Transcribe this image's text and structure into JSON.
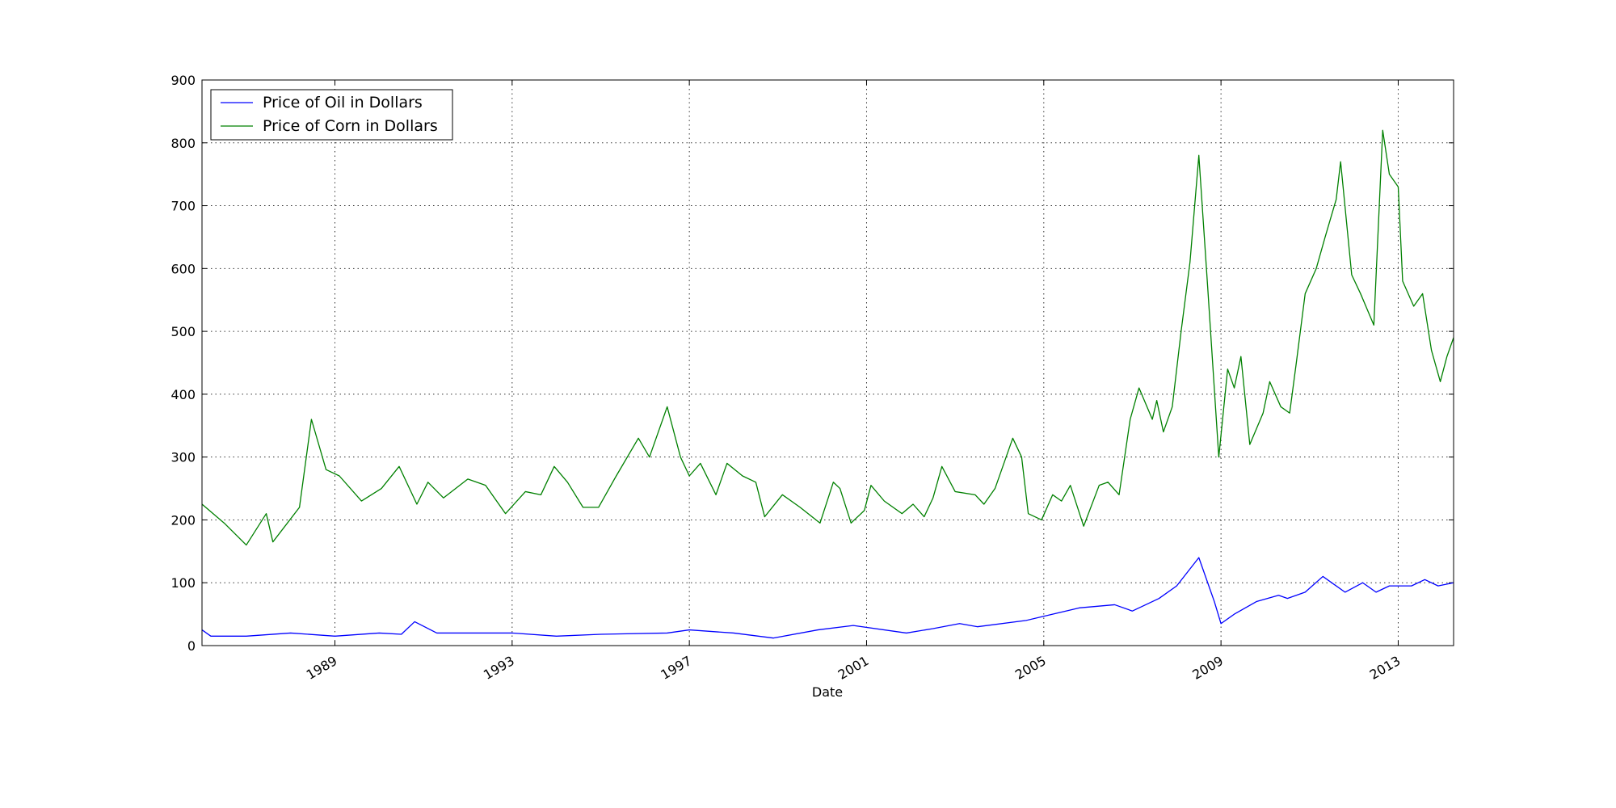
{
  "chart_data": {
    "type": "line",
    "x_label": "Date",
    "xlim": [
      1986.0,
      2014.25
    ],
    "xticks": [
      1989,
      1993,
      1997,
      2001,
      2005,
      2009,
      2013
    ],
    "ylim": [
      0,
      900
    ],
    "yticks": [
      0,
      100,
      200,
      300,
      400,
      500,
      600,
      700,
      800,
      900
    ],
    "grid": true,
    "legend": "upper-left",
    "series": [
      {
        "name": "Price of Oil in Dollars",
        "color": "#0000ff",
        "x": [
          1986.0,
          1986.2,
          1987.0,
          1988.0,
          1989.0,
          1990.0,
          1990.5,
          1990.8,
          1991.3,
          1993.0,
          1994.0,
          1995.0,
          1996.5,
          1997.0,
          1998.0,
          1998.9,
          1999.9,
          2000.7,
          2001.9,
          2002.5,
          2003.1,
          2003.5,
          2004.6,
          2005.2,
          2005.8,
          2006.6,
          2007.0,
          2007.6,
          2008.0,
          2008.5,
          2008.85,
          2009.0,
          2009.3,
          2009.8,
          2010.3,
          2010.5,
          2010.9,
          2011.3,
          2011.8,
          2012.2,
          2012.5,
          2012.8,
          2013.3,
          2013.6,
          2013.9,
          2014.25
        ],
        "values": [
          25,
          15,
          15,
          20,
          15,
          20,
          18,
          38,
          20,
          20,
          15,
          18,
          20,
          25,
          20,
          12,
          25,
          32,
          20,
          27,
          35,
          30,
          40,
          50,
          60,
          65,
          55,
          75,
          95,
          140,
          70,
          35,
          50,
          70,
          80,
          75,
          85,
          110,
          85,
          100,
          85,
          95,
          95,
          105,
          95,
          100
        ]
      },
      {
        "name": "Price of Corn in Dollars",
        "color": "#008000",
        "x": [
          1986.0,
          1986.5,
          1987.0,
          1987.45,
          1987.6,
          1988.2,
          1988.47,
          1988.8,
          1989.1,
          1989.6,
          1990.05,
          1990.45,
          1990.85,
          1991.1,
          1991.45,
          1992.0,
          1992.4,
          1992.85,
          1993.3,
          1993.65,
          1993.95,
          1994.25,
          1994.6,
          1994.95,
          1995.35,
          1995.85,
          1996.1,
          1996.5,
          1996.8,
          1997.0,
          1997.25,
          1997.6,
          1997.85,
          1998.2,
          1998.5,
          1998.7,
          1999.1,
          1999.5,
          1999.95,
          2000.25,
          2000.4,
          2000.65,
          2000.95,
          2001.1,
          2001.4,
          2001.8,
          2002.05,
          2002.3,
          2002.5,
          2002.7,
          2003.0,
          2003.45,
          2003.65,
          2003.9,
          2004.3,
          2004.5,
          2004.65,
          2004.95,
          2005.2,
          2005.4,
          2005.6,
          2005.9,
          2006.25,
          2006.45,
          2006.7,
          2006.95,
          2007.15,
          2007.45,
          2007.55,
          2007.7,
          2007.9,
          2008.1,
          2008.3,
          2008.5,
          2008.7,
          2008.95,
          2009.15,
          2009.3,
          2009.45,
          2009.65,
          2009.95,
          2010.1,
          2010.35,
          2010.55,
          2010.7,
          2010.9,
          2011.15,
          2011.35,
          2011.6,
          2011.7,
          2011.95,
          2012.15,
          2012.45,
          2012.65,
          2012.8,
          2013.0,
          2013.1,
          2013.35,
          2013.55,
          2013.75,
          2013.95,
          2014.1,
          2014.25
        ],
        "values": [
          225,
          195,
          160,
          210,
          165,
          220,
          360,
          280,
          270,
          230,
          250,
          285,
          225,
          260,
          235,
          265,
          255,
          210,
          245,
          240,
          285,
          260,
          220,
          220,
          270,
          330,
          300,
          380,
          300,
          270,
          290,
          240,
          290,
          270,
          260,
          205,
          240,
          220,
          195,
          260,
          250,
          195,
          215,
          255,
          230,
          210,
          225,
          205,
          235,
          285,
          245,
          240,
          225,
          250,
          330,
          300,
          210,
          200,
          240,
          230,
          255,
          190,
          255,
          260,
          240,
          360,
          410,
          360,
          390,
          340,
          380,
          500,
          610,
          780,
          570,
          300,
          440,
          410,
          460,
          320,
          370,
          420,
          380,
          370,
          450,
          560,
          600,
          650,
          710,
          770,
          590,
          560,
          510,
          820,
          750,
          730,
          580,
          540,
          560,
          470,
          420,
          460,
          490
        ]
      }
    ]
  }
}
